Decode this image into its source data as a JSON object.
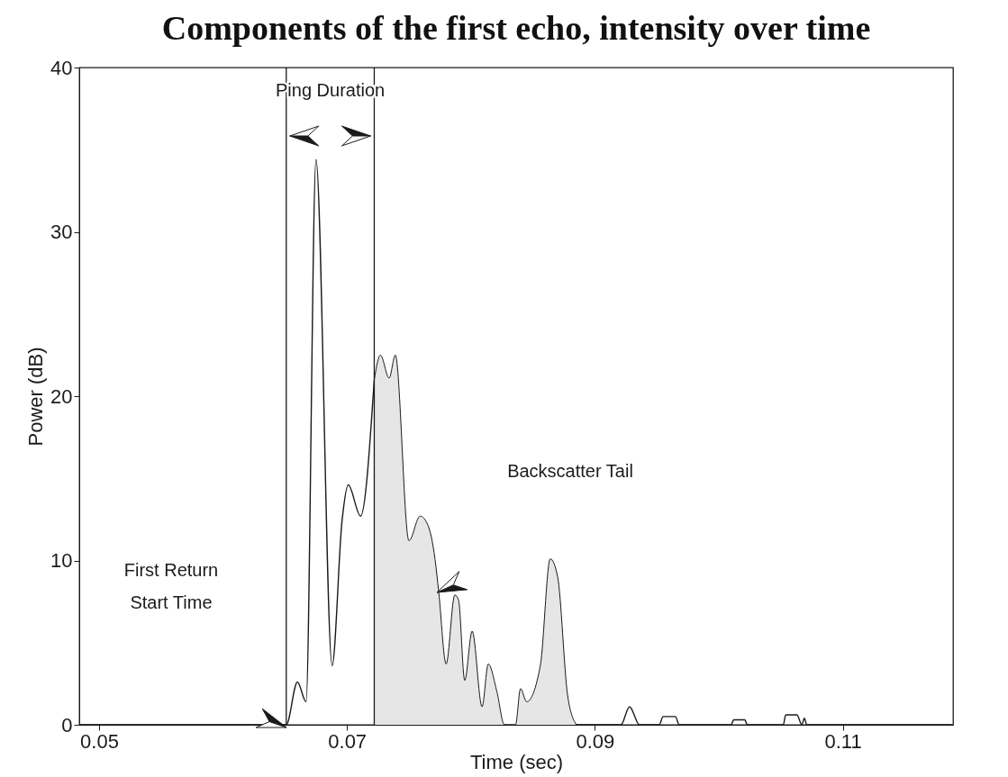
{
  "chart_data": {
    "type": "line",
    "title": "Components of the first echo, intensity over time",
    "xlabel": "Time (sec)",
    "ylabel": "Power (dB)",
    "xlim": [
      0.0484,
      0.1189
    ],
    "xticks": [
      0.05,
      0.07,
      0.09,
      0.11
    ],
    "ylim": [
      0,
      40
    ],
    "yticks": [
      0,
      10,
      20,
      30,
      40
    ],
    "series": [
      {
        "type": "line",
        "color": "#1a1a1a",
        "x": [
          0.0484,
          0.0651,
          0.066,
          0.0667,
          0.0675,
          0.0688,
          0.0696,
          0.0701,
          0.0711,
          0.0722
        ],
        "values": [
          0,
          0,
          2.6,
          1.4,
          34.4,
          3.6,
          12.4,
          14.6,
          12.7,
          21.0
        ]
      },
      {
        "type": "area",
        "color": "#e6e6e6",
        "x": [
          0.0722,
          0.0727,
          0.0734,
          0.0739,
          0.075,
          0.0759,
          0.0765,
          0.0771,
          0.0774,
          0.078,
          0.0787,
          0.079,
          0.0795,
          0.0801,
          0.0809,
          0.0814,
          0.0821,
          0.0827,
          0.0836,
          0.084,
          0.0845,
          0.0856,
          0.0864,
          0.087,
          0.0878,
          0.0885
        ],
        "values": [
          21.0,
          22.5,
          21.1,
          22.5,
          11.2,
          12.7,
          12.2,
          10.1,
          8.1,
          3.7,
          7.9,
          7.6,
          2.7,
          5.7,
          1.1,
          3.7,
          2.0,
          0,
          0,
          2.2,
          1.4,
          3.6,
          10.1,
          9.0,
          1.8,
          0
        ]
      },
      {
        "type": "line",
        "color": "#1a1a1a",
        "x": [
          0.0885,
          0.0921,
          0.0928,
          0.0936,
          0.0952,
          0.0955,
          0.0965,
          0.0968,
          0.101,
          0.1012,
          0.1021,
          0.1023,
          0.1052,
          0.1054,
          0.1063,
          0.1067,
          0.1069,
          0.1071,
          0.1188
        ],
        "values": [
          0,
          0,
          1.1,
          0,
          0,
          0.5,
          0.5,
          0,
          0,
          0.3,
          0.3,
          0,
          0,
          0.6,
          0.6,
          0,
          0.4,
          0,
          0
        ]
      }
    ],
    "ref_lines": [
      {
        "axis": "x",
        "value": 0.0651,
        "color": "#1a1a1a"
      },
      {
        "axis": "x",
        "value": 0.0722,
        "color": "#1a1a1a"
      }
    ],
    "annotations": [
      "Ping Duration",
      "First Return\nStart Time",
      "Backscatter Tail"
    ]
  }
}
